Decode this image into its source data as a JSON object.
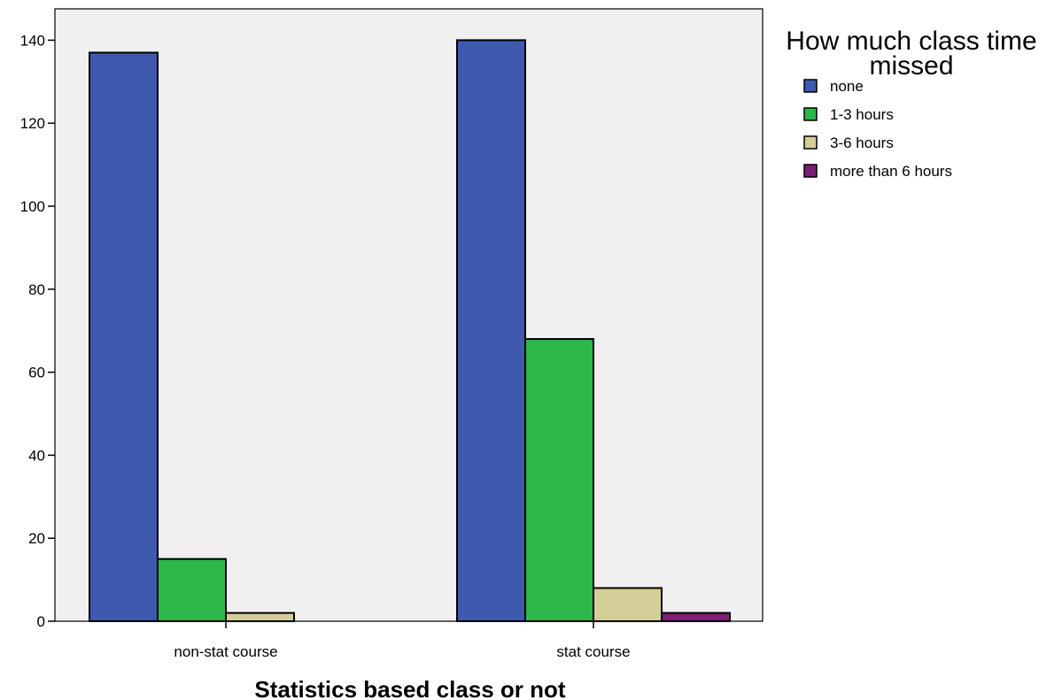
{
  "chart_data": {
    "type": "bar",
    "categories": [
      "non-stat course",
      "stat course"
    ],
    "series": [
      {
        "name": "none",
        "values": [
          137,
          140
        ],
        "color": "#3e59ad"
      },
      {
        "name": "1-3 hours",
        "values": [
          15,
          68
        ],
        "color": "#2db84a"
      },
      {
        "name": "3-6 hours",
        "values": [
          2,
          8
        ],
        "color": "#d4cd97"
      },
      {
        "name": "more than 6 hours",
        "values": [
          0,
          2
        ],
        "color": "#7b1f75"
      }
    ],
    "title": "",
    "xlabel": "Statistics based class or not",
    "ylabel": "",
    "ylim": [
      0,
      150
    ],
    "yticks": [
      0,
      20,
      40,
      60,
      80,
      100,
      120,
      140
    ],
    "ytick_labels": [
      "0",
      "20",
      "40",
      "60",
      "80",
      "100",
      "120",
      "140"
    ],
    "legend": {
      "title_lines": [
        "How much class time",
        "missed"
      ],
      "position": "top-right"
    },
    "plot_background": "#f0f0f0",
    "grid": false
  }
}
